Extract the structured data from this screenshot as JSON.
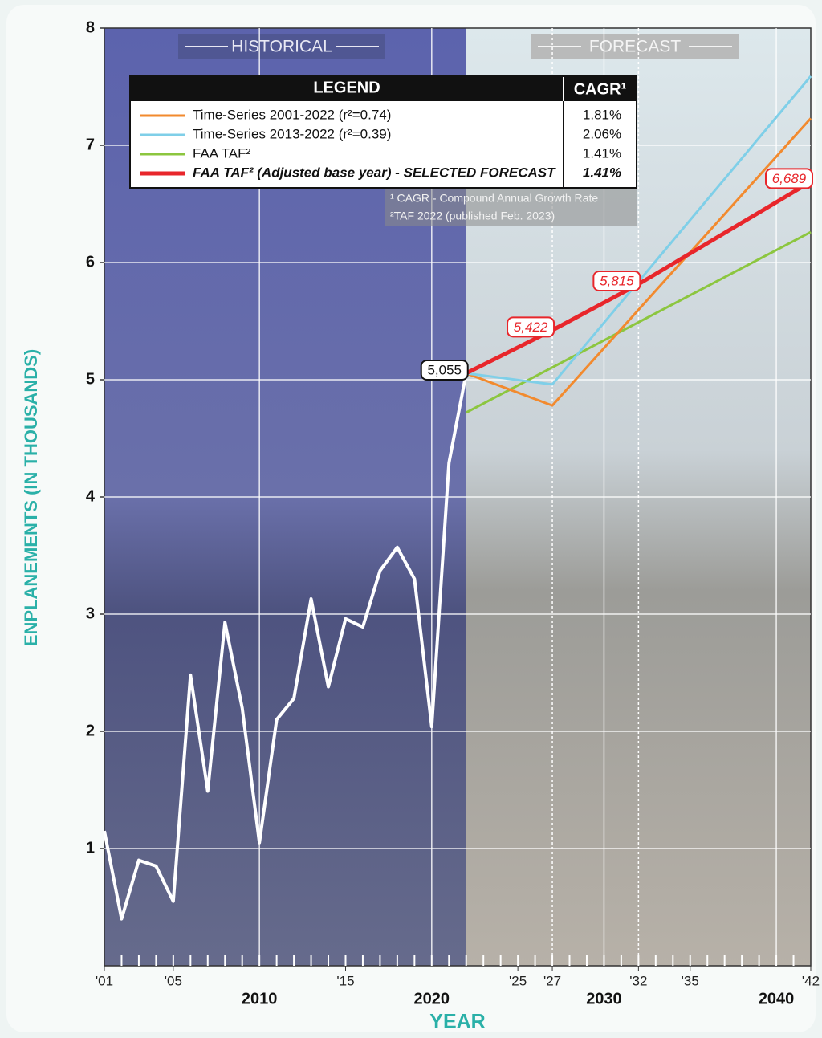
{
  "chart_data": {
    "type": "line",
    "ylabel": "ENPLANEMENTS (IN THOUSANDS)",
    "xlabel": "YEAR",
    "section_labels": [
      "HISTORICAL",
      "FORECAST"
    ],
    "split_x": 2022,
    "legend_title": "LEGEND",
    "legend_value_title": "CAGR¹",
    "footnotes": [
      "¹ CAGR - Compound Annual Growth Rate",
      "²TAF 2022 (published Feb. 2023)"
    ],
    "xlim": [
      2001,
      2042
    ],
    "ylim": [
      0,
      8
    ],
    "yticks": [
      1,
      2,
      3,
      4,
      5,
      6,
      7,
      8
    ],
    "xticks": [
      {
        "value": 2001,
        "label": "'01"
      },
      {
        "value": 2005,
        "label": "'05"
      },
      {
        "value": 2015,
        "label": "'15"
      },
      {
        "value": 2025,
        "label": "'25"
      },
      {
        "value": 2027,
        "label": "'27"
      },
      {
        "value": 2032,
        "label": "'32"
      },
      {
        "value": 2035,
        "label": "'35"
      },
      {
        "value": 2042,
        "label": "'42"
      }
    ],
    "xticks_major": [
      2010,
      2020,
      2030,
      2040
    ],
    "dotted_x": [
      2027,
      2032
    ],
    "xminor": [
      2002,
      2003,
      2004,
      2005,
      2006,
      2007,
      2008,
      2009,
      2010,
      2011,
      2012,
      2013,
      2014,
      2015,
      2016,
      2017,
      2018,
      2019,
      2020,
      2021,
      2022,
      2023,
      2024,
      2025,
      2026,
      2027,
      2028,
      2029,
      2030,
      2031,
      2032,
      2033,
      2034,
      2035,
      2036,
      2037,
      2038,
      2039,
      2040,
      2041
    ],
    "grid": true,
    "series": [
      {
        "color": "#ffffff",
        "x": [
          2001,
          2002,
          2003,
          2004,
          2005,
          2006,
          2007,
          2008,
          2009,
          2010,
          2011,
          2012,
          2013,
          2014,
          2015,
          2016,
          2017,
          2018,
          2019,
          2020,
          2021,
          2022
        ],
        "values": [
          1.15,
          0.4,
          0.9,
          0.85,
          0.55,
          2.48,
          1.49,
          2.93,
          2.2,
          1.05,
          2.1,
          2.28,
          3.13,
          2.38,
          2.96,
          2.89,
          3.37,
          3.57,
          3.3,
          2.04,
          4.29,
          5.055
        ],
        "value_labels": [
          null,
          null,
          null,
          null,
          null,
          null,
          null,
          null,
          null,
          null,
          null,
          null,
          null,
          null,
          null,
          null,
          null,
          null,
          null,
          null,
          null,
          "5,055"
        ]
      },
      {
        "name": "Time-Series 2001-2022 (r²=0.74)",
        "cagr": "1.81%",
        "color": "#f28a2e",
        "x": [
          2022,
          2027,
          2042
        ],
        "values": [
          5.055,
          4.78,
          7.23
        ]
      },
      {
        "name": "Time-Series 2013-2022 (r²=0.39)",
        "cagr": "2.06%",
        "color": "#7fcfe8",
        "x": [
          2022,
          2027,
          2042
        ],
        "values": [
          5.055,
          4.96,
          7.59
        ]
      },
      {
        "name": "FAA TAF²",
        "cagr": "1.41%",
        "color": "#8cc63f",
        "x": [
          2022,
          2042
        ],
        "values": [
          4.72,
          6.26
        ]
      },
      {
        "name": "FAA TAF² (Adjusted base year) - SELECTED FORECAST",
        "cagr": "1.41%",
        "color": "#e8262b",
        "x": [
          2022,
          2027,
          2032,
          2042
        ],
        "values": [
          5.055,
          5.422,
          5.815,
          6.689
        ],
        "value_labels": [
          null,
          "5,422",
          "5,815",
          "6,689"
        ]
      }
    ]
  }
}
